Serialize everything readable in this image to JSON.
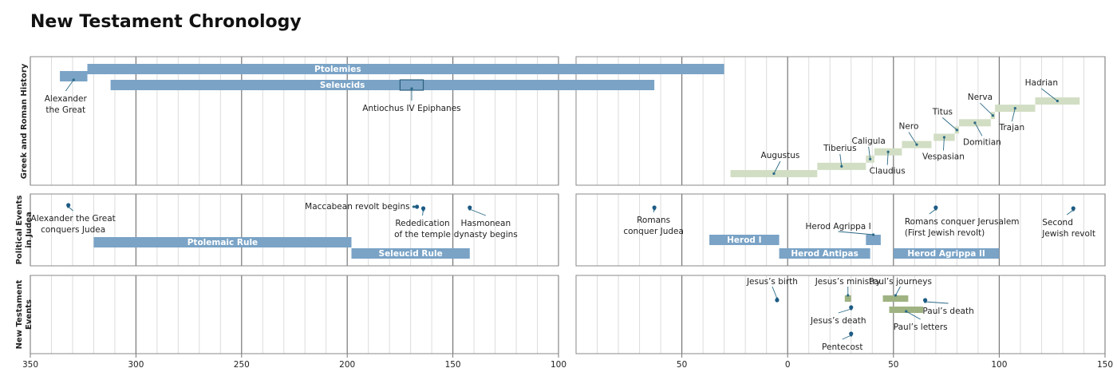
{
  "chart_data": {
    "type": "timeline",
    "title": "New Testament Chronology",
    "grid": true,
    "panels": [
      {
        "xlim": [
          -350,
          -100
        ],
        "xticks": [
          {
            "value": -350,
            "label": "350"
          },
          {
            "value": -300,
            "label": "300"
          },
          {
            "value": -250,
            "label": "250"
          },
          {
            "value": -200,
            "label": "200"
          },
          {
            "value": -150,
            "label": "150"
          },
          {
            "value": -100,
            "label": "100"
          }
        ],
        "minor_xticks": [
          -340,
          -330,
          -320,
          -310,
          -290,
          -280,
          -270,
          -260,
          -240,
          -230,
          -220,
          -210,
          -190,
          -180,
          -170,
          -160,
          -140,
          -130,
          -120,
          -110
        ]
      },
      {
        "xlim": [
          -100,
          150
        ],
        "xticks": [
          {
            "value": -50,
            "label": "50"
          },
          0,
          50,
          100,
          150
        ],
        "minor_xticks": [
          -90,
          -80,
          -70,
          -60,
          -40,
          -30,
          -20,
          -10,
          10,
          20,
          30,
          40,
          60,
          70,
          80,
          90,
          110,
          120,
          130,
          140
        ]
      }
    ],
    "rows": [
      {
        "label": [
          "Greek and Roman History"
        ],
        "bars": [
          {
            "label": [
              "Alexander",
              "the Great"
            ],
            "start": -336,
            "end": -323,
            "color": "#7aa3c6"
          },
          {
            "label": [
              "Ptolemies"
            ],
            "start": -323,
            "end": -30,
            "color": "#7aa3c6"
          },
          {
            "label": [
              "Seleucids"
            ],
            "start": -312,
            "end": -63,
            "color": "#7aa3c6"
          },
          {
            "label": [
              "Antiochus IV Epiphanes"
            ],
            "start": -175,
            "end": -164,
            "color": "#2b5f7c",
            "style": "outline"
          }
        ],
        "emperors": [
          {
            "label": [
              "Augustus"
            ],
            "start": -27,
            "end": 14,
            "color": "#d2dec4"
          },
          {
            "label": [
              "Tiberius"
            ],
            "start": 14,
            "end": 37,
            "color": "#d2dec4"
          },
          {
            "label": [
              "Caligula"
            ],
            "start": 37,
            "end": 41,
            "color": "#d2dec4"
          },
          {
            "label": [
              "Claudius"
            ],
            "start": 41,
            "end": 54,
            "color": "#d2dec4"
          },
          {
            "label": [
              "Nero"
            ],
            "start": 54,
            "end": 68,
            "color": "#d2dec4"
          },
          {
            "label": [
              "Vespasian"
            ],
            "start": 69,
            "end": 79,
            "color": "#d2dec4"
          },
          {
            "label": [
              "Titus"
            ],
            "start": 79,
            "end": 81,
            "color": "#d2dec4"
          },
          {
            "label": [
              "Domitian"
            ],
            "start": 81,
            "end": 96,
            "color": "#d2dec4"
          },
          {
            "label": [
              "Nerva"
            ],
            "start": 96,
            "end": 98,
            "color": "#d2dec4"
          },
          {
            "label": [
              "Trajan"
            ],
            "start": 98,
            "end": 117,
            "color": "#d2dec4"
          },
          {
            "label": [
              "Hadrian"
            ],
            "start": 117,
            "end": 138,
            "color": "#d2dec4"
          }
        ],
        "events": []
      },
      {
        "label": [
          "Political Events",
          "in Judea"
        ],
        "bars": [
          {
            "label": [
              "Ptolemaic Rule"
            ],
            "start": -320,
            "end": -198,
            "color": "#7aa3c6"
          },
          {
            "label": [
              "Seleucid Rule"
            ],
            "start": -198,
            "end": -142,
            "color": "#7aa3c6"
          },
          {
            "label": [
              "Herod I"
            ],
            "start": -37,
            "end": -4,
            "color": "#7aa3c6"
          },
          {
            "label": [
              "Herod Antipas"
            ],
            "start": -4,
            "end": 39,
            "color": "#7aa3c6"
          },
          {
            "label": [
              "Herod Agrippa I"
            ],
            "start": 37,
            "end": 44,
            "color": "#7aa3c6"
          },
          {
            "label": [
              "Herod Agrippa II"
            ],
            "start": 50,
            "end": 100,
            "color": "#7aa3c6"
          }
        ],
        "events": [
          {
            "label": [
              "Alexander the Great",
              "conquers Judea"
            ],
            "year": -332
          },
          {
            "label": [
              "Maccabean revolt begins"
            ],
            "year": -167
          },
          {
            "label": [
              "Rededication",
              "of the temple"
            ],
            "year": -164
          },
          {
            "label": [
              "Hasmonean",
              "dynasty begins"
            ],
            "year": -142
          },
          {
            "label": [
              "Romans",
              "conquer Judea"
            ],
            "year": -63
          },
          {
            "label": [
              "Romans conquer Jerusalem",
              "(First Jewish revolt)"
            ],
            "year": 70
          },
          {
            "label": [
              "Second",
              "Jewish revolt"
            ],
            "year": 135
          }
        ]
      },
      {
        "label": [
          "New Testament",
          "Events"
        ],
        "bars": [
          {
            "label": [
              "Jesus’s ministry"
            ],
            "start": 27,
            "end": 30,
            "color": "#9fb382"
          },
          {
            "label": [
              "Paul’s journeys"
            ],
            "start": 45,
            "end": 57,
            "color": "#9fb382"
          },
          {
            "label": [
              "Paul’s letters"
            ],
            "start": 48,
            "end": 64,
            "color": "#9fb382"
          }
        ],
        "events": [
          {
            "label": [
              "Jesus’s birth"
            ],
            "year": -5
          },
          {
            "label": [
              "Jesus’s death"
            ],
            "year": 30
          },
          {
            "label": [
              "Pentecost"
            ],
            "year": 30
          },
          {
            "label": [
              "Paul’s death"
            ],
            "year": 65
          }
        ]
      }
    ]
  }
}
